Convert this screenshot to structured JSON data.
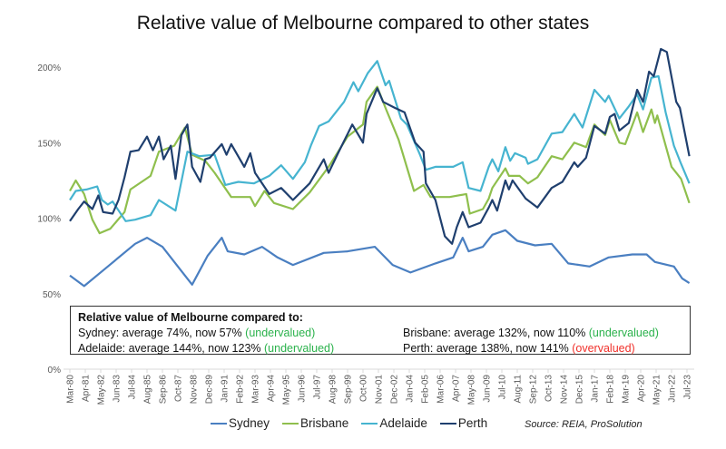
{
  "chart_data": {
    "type": "line",
    "title": "Relative value of Melbourne compared to other states",
    "ylim": [
      0,
      210
    ],
    "y_ticks": [
      "0%",
      "50%",
      "100%",
      "150%",
      "200%"
    ],
    "y_tick_values": [
      0,
      50,
      100,
      150,
      200
    ],
    "x_range": [
      "1980-03",
      "2023-09"
    ],
    "x_tick_labels": [
      "Mar-80",
      "Apr-81",
      "May-82",
      "Jun-83",
      "Jul-84",
      "Aug-85",
      "Sep-86",
      "Oct-87",
      "Nov-88",
      "Dec-89",
      "Jan-91",
      "Feb-92",
      "Mar-93",
      "Apr-94",
      "May-95",
      "Jun-96",
      "Jul-97",
      "Aug-98",
      "Sep-99",
      "Oct-00",
      "Nov-01",
      "Dec-02",
      "Jan-04",
      "Feb-05",
      "Mar-06",
      "Apr-07",
      "May-08",
      "Jun-09",
      "Jul-10",
      "Aug-11",
      "Sep-12",
      "Oct-13",
      "Nov-14",
      "Dec-15",
      "Jan-17",
      "Feb-18",
      "Mar-19",
      "Apr-20",
      "May-21",
      "Jun-22",
      "Jul-23"
    ],
    "grid": false,
    "legend": "bottom",
    "series": [
      {
        "name": "Sydney",
        "color": "#4a7fc1",
        "points": [
          [
            "1980-03",
            62
          ],
          [
            "1981-03",
            55
          ],
          [
            "1982-11",
            68
          ],
          [
            "1984-10",
            83
          ],
          [
            "1985-08",
            87
          ],
          [
            "1986-09",
            81
          ],
          [
            "1987-10",
            68
          ],
          [
            "1988-10",
            56
          ],
          [
            "1989-11",
            75
          ],
          [
            "1990-11",
            87
          ],
          [
            "1991-04",
            78
          ],
          [
            "1992-06",
            76
          ],
          [
            "1993-09",
            81
          ],
          [
            "1994-10",
            74
          ],
          [
            "1995-11",
            69
          ],
          [
            "1998-01",
            77
          ],
          [
            "1999-09",
            78
          ],
          [
            "2001-08",
            81
          ],
          [
            "2002-11",
            69
          ],
          [
            "2004-02",
            64
          ],
          [
            "2005-11",
            70
          ],
          [
            "2007-02",
            74
          ],
          [
            "2007-10",
            87
          ],
          [
            "2008-03",
            78
          ],
          [
            "2009-03",
            81
          ],
          [
            "2009-11",
            89
          ],
          [
            "2010-10",
            92
          ],
          [
            "2011-08",
            85
          ],
          [
            "2012-11",
            82
          ],
          [
            "2014-01",
            83
          ],
          [
            "2015-03",
            70
          ],
          [
            "2016-09",
            68
          ],
          [
            "2018-01",
            74
          ],
          [
            "2019-09",
            76
          ],
          [
            "2020-09",
            76
          ],
          [
            "2021-04",
            71
          ],
          [
            "2022-08",
            68
          ],
          [
            "2023-03",
            60
          ],
          [
            "2023-09",
            57
          ]
        ]
      },
      {
        "name": "Brisbane",
        "color": "#8fbf4d",
        "points": [
          [
            "1980-03",
            118
          ],
          [
            "1980-08",
            125
          ],
          [
            "1981-03",
            116
          ],
          [
            "1981-10",
            99
          ],
          [
            "1982-04",
            90
          ],
          [
            "1983-01",
            93
          ],
          [
            "1984-01",
            104
          ],
          [
            "1984-06",
            119
          ],
          [
            "1985-11",
            128
          ],
          [
            "1986-06",
            144
          ],
          [
            "1987-07",
            148
          ],
          [
            "1988-04",
            160
          ],
          [
            "1988-10",
            142
          ],
          [
            "1989-09",
            138
          ],
          [
            "1990-05",
            130
          ],
          [
            "1991-07",
            114
          ],
          [
            "1992-11",
            114
          ],
          [
            "1993-03",
            108
          ],
          [
            "1993-11",
            118
          ],
          [
            "1994-07",
            110
          ],
          [
            "1995-11",
            106
          ],
          [
            "1997-01",
            117
          ],
          [
            "1998-05",
            134
          ],
          [
            "1999-09",
            154
          ],
          [
            "2000-10",
            162
          ],
          [
            "2001-01",
            177
          ],
          [
            "2001-10",
            187
          ],
          [
            "2002-05",
            173
          ],
          [
            "2003-04",
            152
          ],
          [
            "2004-05",
            118
          ],
          [
            "2005-01",
            122
          ],
          [
            "2005-07",
            114
          ],
          [
            "2006-11",
            114
          ],
          [
            "2008-01",
            116
          ],
          [
            "2008-04",
            103
          ],
          [
            "2009-03",
            106
          ],
          [
            "2009-08",
            113
          ],
          [
            "2009-11",
            120
          ],
          [
            "2010-10",
            133
          ],
          [
            "2011-01",
            128
          ],
          [
            "2011-10",
            128
          ],
          [
            "2012-05",
            123
          ],
          [
            "2013-01",
            127
          ],
          [
            "2014-01",
            141
          ],
          [
            "2014-10",
            139
          ],
          [
            "2015-08",
            150
          ],
          [
            "2016-06",
            147
          ],
          [
            "2017-01",
            162
          ],
          [
            "2017-10",
            155
          ],
          [
            "2018-02",
            165
          ],
          [
            "2018-10",
            150
          ],
          [
            "2019-03",
            149
          ],
          [
            "2020-01",
            170
          ],
          [
            "2020-06",
            157
          ],
          [
            "2021-01",
            172
          ],
          [
            "2021-04",
            163
          ],
          [
            "2021-06",
            168
          ],
          [
            "2022-06",
            134
          ],
          [
            "2023-02",
            126
          ],
          [
            "2023-09",
            110
          ]
        ]
      },
      {
        "name": "Adelaide",
        "color": "#46b4d0",
        "points": [
          [
            "1980-03",
            112
          ],
          [
            "1980-08",
            118
          ],
          [
            "1981-05",
            119
          ],
          [
            "1982-02",
            121
          ],
          [
            "1982-06",
            112
          ],
          [
            "1982-11",
            109
          ],
          [
            "1983-03",
            111
          ],
          [
            "1984-02",
            98
          ],
          [
            "1984-10",
            99
          ],
          [
            "1985-11",
            102
          ],
          [
            "1986-06",
            112
          ],
          [
            "1987-08",
            105
          ],
          [
            "1988-06",
            144
          ],
          [
            "1989-04",
            141
          ],
          [
            "1990-05",
            142
          ],
          [
            "1991-02",
            122
          ],
          [
            "1992-01",
            124
          ],
          [
            "1993-02",
            123
          ],
          [
            "1994-03",
            128
          ],
          [
            "1995-01",
            135
          ],
          [
            "1995-11",
            126
          ],
          [
            "1996-09",
            137
          ],
          [
            "1997-02",
            148
          ],
          [
            "1997-09",
            161
          ],
          [
            "1998-05",
            164
          ],
          [
            "1999-06",
            177
          ],
          [
            "2000-02",
            190
          ],
          [
            "2000-06",
            184
          ],
          [
            "2001-02",
            196
          ],
          [
            "2001-10",
            204
          ],
          [
            "2002-05",
            188
          ],
          [
            "2002-08",
            191
          ],
          [
            "2003-06",
            166
          ],
          [
            "2003-11",
            162
          ],
          [
            "2004-10",
            142
          ],
          [
            "2005-03",
            132
          ],
          [
            "2005-11",
            134
          ],
          [
            "2007-02",
            134
          ],
          [
            "2007-10",
            137
          ],
          [
            "2008-03",
            120
          ],
          [
            "2009-01",
            118
          ],
          [
            "2009-08",
            134
          ],
          [
            "2009-11",
            139
          ],
          [
            "2010-04",
            131
          ],
          [
            "2010-10",
            147
          ],
          [
            "2011-02",
            138
          ],
          [
            "2011-06",
            143
          ],
          [
            "2012-03",
            140
          ],
          [
            "2012-05",
            136
          ],
          [
            "2013-01",
            139
          ],
          [
            "2014-01",
            156
          ],
          [
            "2014-10",
            157
          ],
          [
            "2015-08",
            169
          ],
          [
            "2016-03",
            160
          ],
          [
            "2017-01",
            185
          ],
          [
            "2017-10",
            177
          ],
          [
            "2018-01",
            181
          ],
          [
            "2018-10",
            166
          ],
          [
            "2019-06",
            174
          ],
          [
            "2020-01",
            182
          ],
          [
            "2020-06",
            172
          ],
          [
            "2021-01",
            193
          ],
          [
            "2021-07",
            194
          ],
          [
            "2022-01",
            170
          ],
          [
            "2022-08",
            148
          ],
          [
            "2023-02",
            136
          ],
          [
            "2023-09",
            123
          ]
        ]
      },
      {
        "name": "Perth",
        "color": "#1f3f6e",
        "points": [
          [
            "1980-03",
            98
          ],
          [
            "1980-10",
            106
          ],
          [
            "1981-03",
            111
          ],
          [
            "1981-10",
            106
          ],
          [
            "1982-03",
            115
          ],
          [
            "1982-07",
            104
          ],
          [
            "1983-03",
            103
          ],
          [
            "1983-08",
            112
          ],
          [
            "1984-01",
            127
          ],
          [
            "1984-06",
            144
          ],
          [
            "1985-01",
            145
          ],
          [
            "1985-08",
            154
          ],
          [
            "1986-01",
            145
          ],
          [
            "1986-06",
            154
          ],
          [
            "1986-10",
            139
          ],
          [
            "1987-04",
            148
          ],
          [
            "1987-08",
            126
          ],
          [
            "1988-01",
            155
          ],
          [
            "1988-06",
            162
          ],
          [
            "1988-10",
            134
          ],
          [
            "1989-05",
            124
          ],
          [
            "1989-09",
            139
          ],
          [
            "1990-01",
            140
          ],
          [
            "1990-11",
            149
          ],
          [
            "1991-03",
            142
          ],
          [
            "1991-07",
            149
          ],
          [
            "1992-06",
            134
          ],
          [
            "1992-11",
            143
          ],
          [
            "1993-03",
            130
          ],
          [
            "1994-03",
            116
          ],
          [
            "1995-01",
            120
          ],
          [
            "1995-11",
            112
          ],
          [
            "1997-01",
            123
          ],
          [
            "1998-01",
            139
          ],
          [
            "1998-05",
            130
          ],
          [
            "1999-01",
            143
          ],
          [
            "2000-01",
            162
          ],
          [
            "2000-10",
            150
          ],
          [
            "2001-01",
            169
          ],
          [
            "2001-10",
            186
          ],
          [
            "2002-03",
            177
          ],
          [
            "2003-01",
            173
          ],
          [
            "2003-09",
            170
          ],
          [
            "2004-06",
            150
          ],
          [
            "2005-01",
            144
          ],
          [
            "2005-03",
            123
          ],
          [
            "2005-11",
            112
          ],
          [
            "2006-07",
            88
          ],
          [
            "2007-01",
            83
          ],
          [
            "2007-05",
            94
          ],
          [
            "2007-10",
            104
          ],
          [
            "2008-03",
            94
          ],
          [
            "2009-01",
            97
          ],
          [
            "2009-08",
            107
          ],
          [
            "2009-11",
            112
          ],
          [
            "2010-03",
            105
          ],
          [
            "2010-10",
            125
          ],
          [
            "2011-01",
            119
          ],
          [
            "2011-04",
            125
          ],
          [
            "2012-03",
            113
          ],
          [
            "2013-01",
            107
          ],
          [
            "2014-01",
            120
          ],
          [
            "2014-10",
            124
          ],
          [
            "2015-08",
            137
          ],
          [
            "2015-11",
            134
          ],
          [
            "2016-06",
            140
          ],
          [
            "2017-01",
            161
          ],
          [
            "2017-10",
            156
          ],
          [
            "2018-02",
            167
          ],
          [
            "2018-06",
            169
          ],
          [
            "2018-10",
            158
          ],
          [
            "2019-06",
            163
          ],
          [
            "2020-01",
            185
          ],
          [
            "2020-06",
            177
          ],
          [
            "2020-11",
            197
          ],
          [
            "2021-03",
            194
          ],
          [
            "2021-09",
            212
          ],
          [
            "2022-02",
            210
          ],
          [
            "2022-10",
            177
          ],
          [
            "2023-01",
            173
          ],
          [
            "2023-09",
            141
          ]
        ]
      }
    ]
  },
  "note": {
    "heading": "Relative value of Melbourne compared to:",
    "sydney": {
      "text": "Sydney: average 74%, now 57% ",
      "status": "(undervalued)"
    },
    "brisbane": {
      "text": "Brisbane: average 132%, now 110% ",
      "status": "(undervalued)"
    },
    "adelaide": {
      "text": "Adelaide: average 144%, now 123% ",
      "status": "(undervalued)"
    },
    "perth": {
      "text": "Perth: average 138%, now 141% ",
      "status": "(overvalued)"
    },
    "colors": {
      "undervalued": "#2bb24c",
      "overvalued": "#f0302a"
    }
  },
  "legend": [
    "Sydney",
    "Brisbane",
    "Adelaide",
    "Perth"
  ],
  "source": "Source: REIA, ProSolution"
}
